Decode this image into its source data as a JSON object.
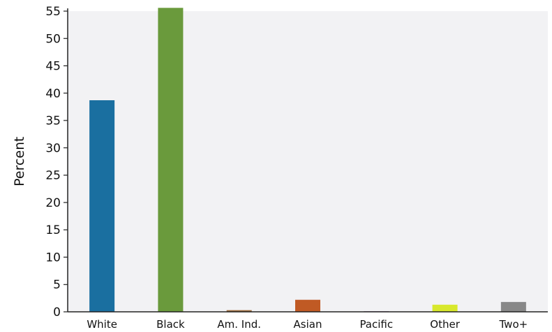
{
  "chart_data": {
    "type": "bar",
    "title": "",
    "xlabel": "",
    "ylabel": "Percent",
    "categories": [
      "White",
      "Black",
      "Am. Ind.",
      "Asian",
      "Pacific",
      "Other",
      "Two+"
    ],
    "values": [
      38.7,
      55.6,
      0.3,
      2.2,
      0.1,
      1.3,
      1.8
    ],
    "colors": [
      "#1a6fa0",
      "#6a9a3c",
      "#9c6a3a",
      "#c05a24",
      "#8a5a8a",
      "#d8e82c",
      "#888888"
    ],
    "ylim": [
      0,
      55
    ],
    "yticks": [
      "0",
      "5",
      "10",
      "15",
      "20",
      "25",
      "30",
      "35",
      "40",
      "45",
      "50",
      "55"
    ],
    "grid": false,
    "legend": "none",
    "plot_background": "#f2f2f4"
  }
}
